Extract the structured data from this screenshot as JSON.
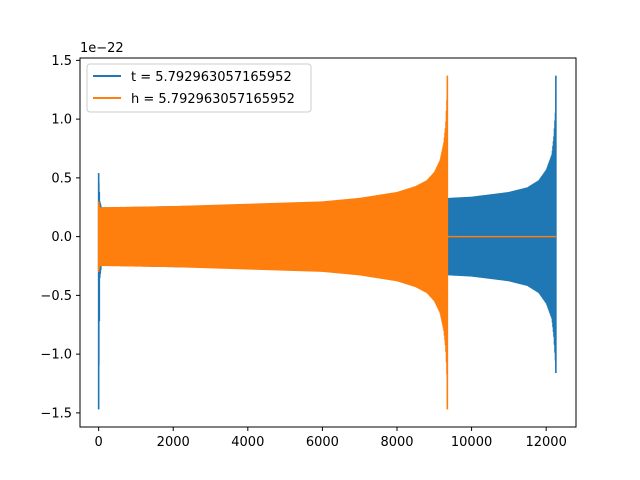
{
  "chart_data": {
    "type": "line",
    "title": "",
    "xlabel": "",
    "ylabel": "",
    "xlim": [
      -500,
      12800
    ],
    "ylim": [
      -1.62,
      1.52
    ],
    "y_offset_label": "1e−22",
    "grid": false,
    "legend_position": "top-left",
    "x_ticks": [
      0,
      2000,
      4000,
      6000,
      8000,
      10000,
      12000
    ],
    "x_tick_labels": [
      "0",
      "2000",
      "4000",
      "6000",
      "8000",
      "10000",
      "12000"
    ],
    "y_ticks": [
      -1.5,
      -1.0,
      -0.5,
      0.0,
      0.5,
      1.0,
      1.5
    ],
    "y_tick_labels": [
      "−1.5",
      "−1.0",
      "−0.5",
      "0.0",
      "0.5",
      "1.0",
      "1.5"
    ],
    "series": [
      {
        "name": "t = 5.792963057165952",
        "color": "#1f77b4",
        "envelope": {
          "x": [
            0,
            40,
            80,
            500,
            2000,
            4000,
            6000,
            8000,
            9000,
            9400,
            10000,
            11000,
            11500,
            11800,
            12000,
            12150,
            12200,
            12250,
            12260
          ],
          "upper": [
            0.54,
            0.3,
            0.25,
            0.25,
            0.26,
            0.27,
            0.29,
            0.31,
            0.32,
            0.33,
            0.34,
            0.38,
            0.42,
            0.48,
            0.57,
            0.7,
            0.85,
            1.1,
            1.37
          ],
          "lower": [
            -1.47,
            -0.35,
            -0.25,
            -0.25,
            -0.26,
            -0.27,
            -0.29,
            -0.31,
            -0.32,
            -0.33,
            -0.34,
            -0.38,
            -0.42,
            -0.48,
            -0.57,
            -0.7,
            -0.85,
            -1.1,
            -1.16
          ]
        }
      },
      {
        "name": "h = 5.792963057165952",
        "color": "#ff7f0e",
        "envelope": {
          "x": [
            0,
            40,
            80,
            1000,
            2000,
            3000,
            4000,
            5000,
            6000,
            7000,
            8000,
            8500,
            8800,
            9000,
            9150,
            9250,
            9300,
            9330,
            9350
          ],
          "upper": [
            0.3,
            0.25,
            0.25,
            0.255,
            0.26,
            0.27,
            0.28,
            0.29,
            0.3,
            0.33,
            0.38,
            0.43,
            0.48,
            0.55,
            0.65,
            0.8,
            0.95,
            1.15,
            1.37
          ],
          "lower": [
            -0.3,
            -0.25,
            -0.25,
            -0.255,
            -0.26,
            -0.27,
            -0.28,
            -0.29,
            -0.3,
            -0.33,
            -0.38,
            -0.43,
            -0.48,
            -0.55,
            -0.65,
            -0.8,
            -0.95,
            -1.15,
            -1.47
          ]
        },
        "tail": {
          "x": [
            9350,
            12260
          ],
          "y": [
            0,
            0
          ]
        }
      }
    ]
  }
}
